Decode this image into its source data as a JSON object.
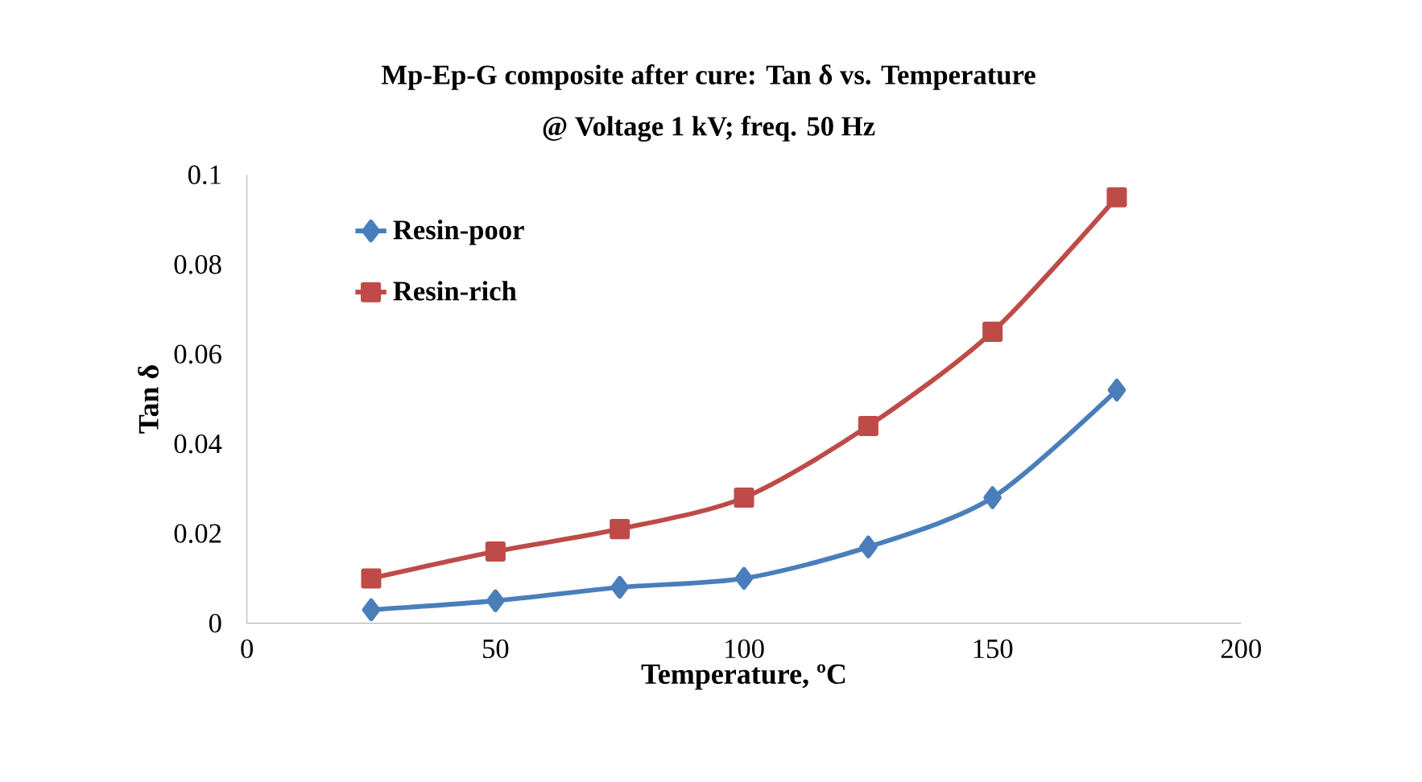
{
  "chart_data": {
    "type": "line",
    "title": "Mp-Ep-G composite after cure: Tan δ vs. Temperature",
    "subtitle": "@ Voltage 1 kV;  freq. 50 Hz",
    "xlabel": "Temperature, ºC",
    "ylabel": "Tan δ",
    "x": [
      25,
      50,
      75,
      100,
      125,
      150,
      175
    ],
    "series": [
      {
        "name": "Resin-poor",
        "color": "#4a7ebb",
        "marker": "diamond",
        "values": [
          0.003,
          0.005,
          0.008,
          0.01,
          0.017,
          0.028,
          0.052
        ]
      },
      {
        "name": "Resin-rich",
        "color": "#be4b48",
        "marker": "square",
        "values": [
          0.01,
          0.016,
          0.021,
          0.028,
          0.044,
          0.065,
          0.095
        ]
      }
    ],
    "xlim": [
      0,
      200
    ],
    "xticks": [
      0,
      50,
      100,
      150,
      200
    ],
    "ylim": [
      0,
      0.1
    ],
    "yticks": [
      0,
      0.02,
      0.04,
      0.06,
      0.08,
      0.1
    ],
    "grid": false,
    "legend": "top left",
    "line_style": "solid"
  }
}
